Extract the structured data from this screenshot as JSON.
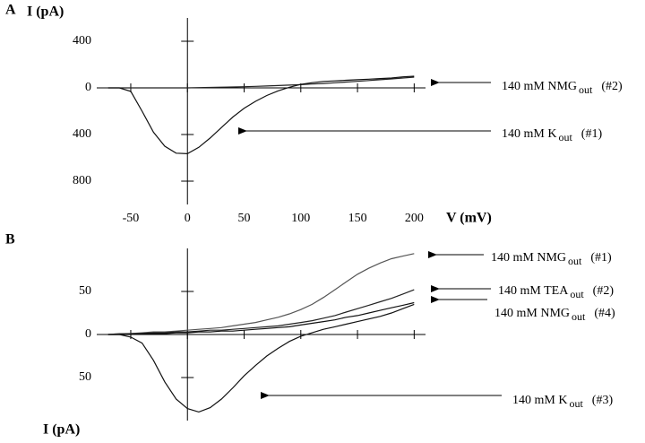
{
  "chart_data": [
    {
      "type": "line",
      "panel": "A",
      "ylabel": "I (pA)",
      "xlabel": "V (mV)",
      "xlim": [
        -80,
        210
      ],
      "xticks": [
        -50,
        0,
        50,
        100,
        150,
        200
      ],
      "show_xtick_labels": true,
      "ylim": [
        -1000,
        600
      ],
      "yticks": [
        {
          "value": 400,
          "label": "400"
        },
        0,
        {
          "value": -400,
          "label": "400"
        },
        {
          "value": -800,
          "label": "800"
        }
      ],
      "x": [
        -70,
        -60,
        -50,
        -40,
        -30,
        -20,
        -10,
        0,
        10,
        20,
        30,
        40,
        50,
        60,
        70,
        80,
        90,
        100,
        110,
        120,
        130,
        140,
        150,
        160,
        170,
        180,
        190,
        200
      ],
      "series": [
        {
          "name": "140 mM NMG",
          "name_sub": "out",
          "tag": "(#2)",
          "color": "#222222",
          "values": [
            0,
            0,
            0,
            0,
            0,
            0,
            0,
            0,
            2,
            4,
            6,
            8,
            10,
            13,
            16,
            20,
            24,
            28,
            33,
            38,
            44,
            50,
            56,
            63,
            70,
            77,
            85,
            92
          ]
        },
        {
          "name": "140 mM K",
          "name_sub": "out",
          "tag": "(#1)",
          "color": "#111111",
          "values": [
            0,
            0,
            -30,
            -200,
            -380,
            -500,
            -560,
            -565,
            -510,
            -430,
            -340,
            -250,
            -175,
            -115,
            -65,
            -25,
            5,
            30,
            45,
            55,
            60,
            65,
            70,
            75,
            80,
            85,
            95,
            100
          ]
        }
      ]
    },
    {
      "type": "line",
      "panel": "B",
      "ylabel": "I (pA)",
      "xlim": [
        -80,
        210
      ],
      "xticks": [
        -50,
        0,
        50,
        100,
        150,
        200
      ],
      "show_xtick_labels": false,
      "ylim": [
        -100,
        100
      ],
      "yticks": [
        50,
        0,
        {
          "value": -50,
          "label": "50"
        }
      ],
      "x": [
        -70,
        -60,
        -50,
        -40,
        -30,
        -20,
        -10,
        0,
        10,
        20,
        30,
        40,
        50,
        60,
        70,
        80,
        90,
        100,
        110,
        120,
        130,
        140,
        150,
        160,
        170,
        180,
        190,
        200
      ],
      "series": [
        {
          "name": "140 mM NMG",
          "name_sub": "out",
          "tag": "(#1)",
          "color": "#555555",
          "values": [
            0,
            1,
            1,
            2,
            3,
            3,
            4,
            5,
            6,
            7,
            8,
            10,
            12,
            14,
            17,
            20,
            24,
            29,
            35,
            43,
            52,
            61,
            70,
            77,
            83,
            88,
            91,
            94
          ]
        },
        {
          "name": "140 mM TEA",
          "name_sub": "out",
          "tag": "(#2)",
          "color": "#222222",
          "values": [
            0,
            0,
            1,
            1,
            2,
            2,
            3,
            3,
            4,
            5,
            5,
            6,
            7,
            8,
            9,
            10,
            12,
            14,
            16,
            19,
            22,
            26,
            30,
            34,
            38,
            42,
            47,
            52
          ]
        },
        {
          "name": "140 mM NMG",
          "name_sub": "out",
          "tag": "(#4)",
          "color": "#111111",
          "values": [
            0,
            0,
            0,
            1,
            1,
            1,
            2,
            2,
            3,
            3,
            4,
            4,
            5,
            6,
            7,
            8,
            9,
            11,
            13,
            15,
            17,
            20,
            22,
            25,
            28,
            31,
            34,
            37
          ]
        },
        {
          "name": "140 mM K",
          "name_sub": "out",
          "tag": "(#3)",
          "color": "#111111",
          "values": [
            0,
            0,
            -3,
            -10,
            -30,
            -55,
            -75,
            -86,
            -90,
            -85,
            -75,
            -62,
            -48,
            -36,
            -25,
            -16,
            -8,
            -2,
            2,
            6,
            9,
            12,
            15,
            18,
            21,
            25,
            30,
            35
          ]
        }
      ]
    }
  ]
}
